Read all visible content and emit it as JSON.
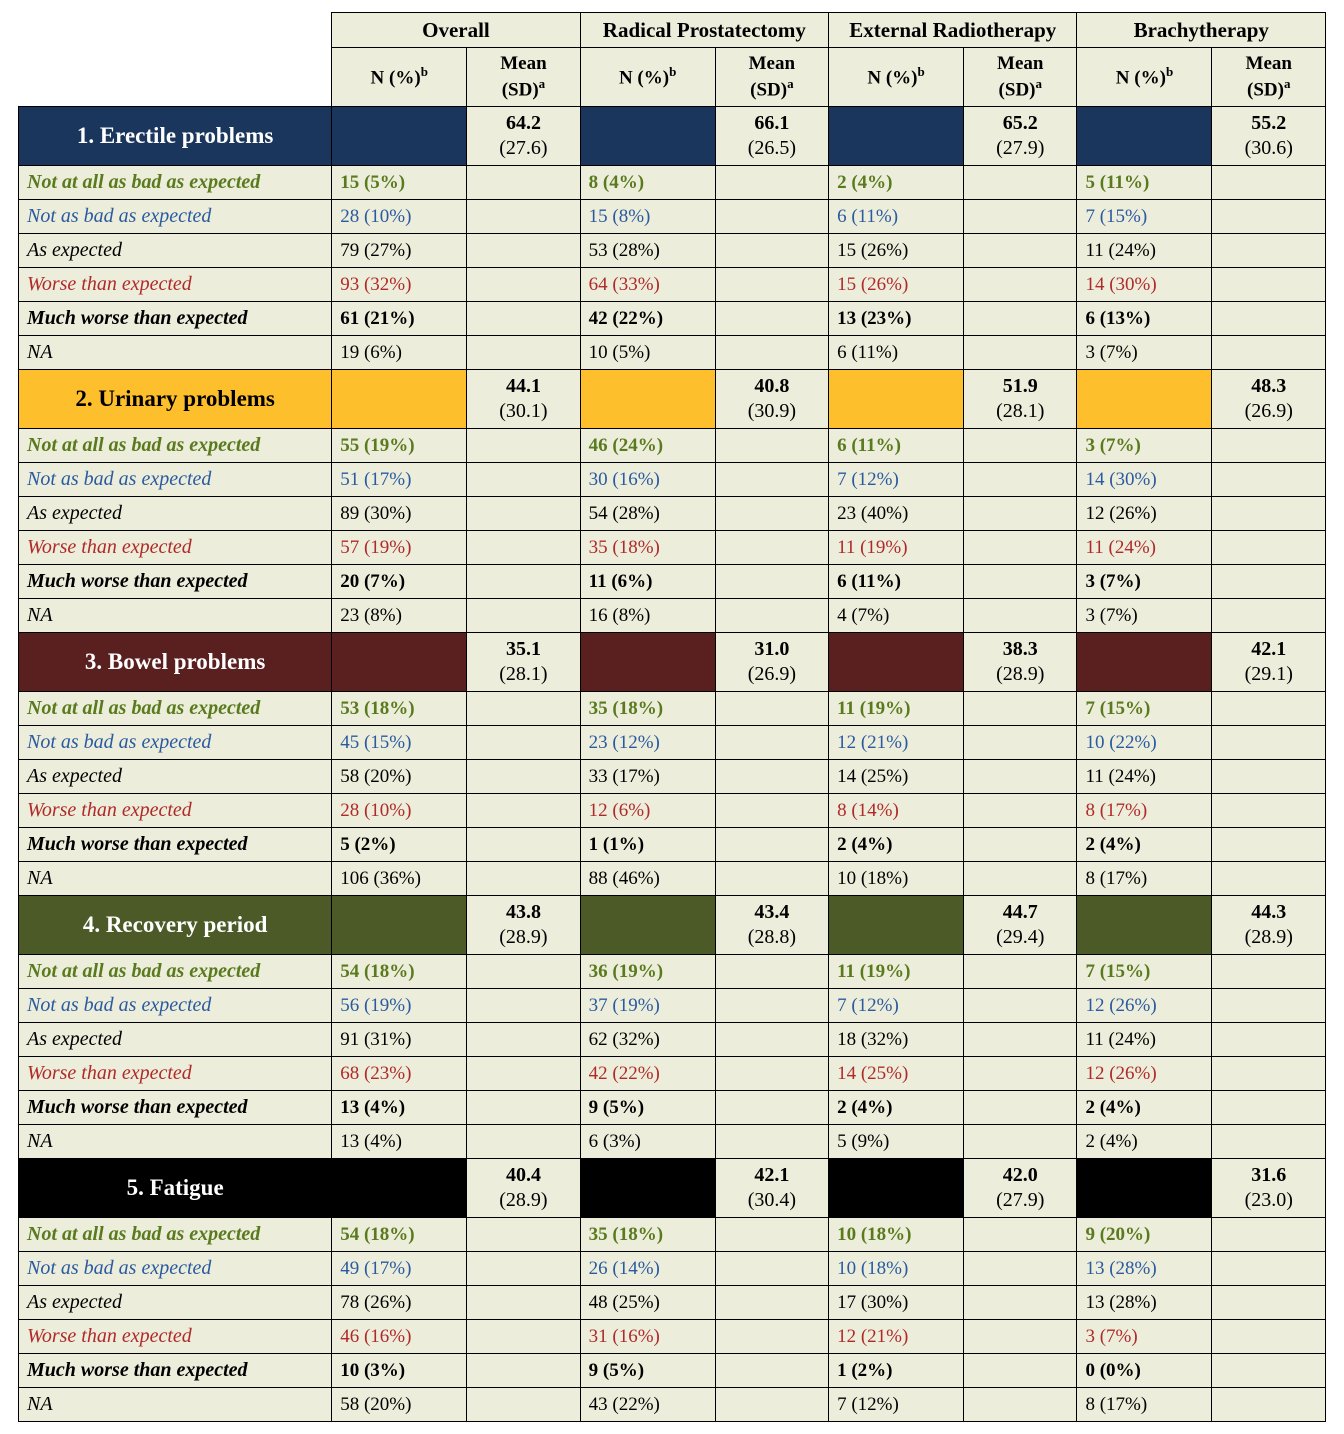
{
  "colors": {
    "header_bg": "#ecedda",
    "cell_bg": "#ecedda",
    "section_bg": {
      "erectile": "#1b365d",
      "urinary": "#febf2c",
      "bowel": "#5a1f1f",
      "recovery": "#4b5a27",
      "fatigue": "#000000"
    },
    "category_text": {
      "not_at_all": "#5a7a1e",
      "not_as_bad": "#2a5aa0",
      "as_expected": "#000000",
      "worse": "#b02a2a",
      "much_worse": "#000000",
      "na": "#000000"
    }
  },
  "groups": [
    "Overall",
    "Radical Prostatectomy",
    "External Radiotherapy",
    "Brachytherapy"
  ],
  "sub_n": "N (%)",
  "sub_n_sup": "b",
  "sub_mean": "Mean (SD)",
  "sub_mean_sup": "a",
  "categories": {
    "not_at_all": {
      "label": "Not at all as bad as expected",
      "color": "c-green",
      "bold": true
    },
    "not_as_bad": {
      "label": "Not as bad as expected",
      "color": "c-blue",
      "bold": false
    },
    "as_expected": {
      "label": "As expected",
      "color": "c-black",
      "bold": false
    },
    "worse": {
      "label": "Worse than expected",
      "color": "c-red",
      "bold": false
    },
    "much_worse": {
      "label": "Much worse than expected",
      "color": "c-black",
      "bold": true
    },
    "na": {
      "label": "NA",
      "color": "c-black",
      "bold": false
    }
  },
  "sections": [
    {
      "key": "erectile",
      "title": "1. Erectile problems",
      "bg_class": "bg-navy",
      "means": [
        {
          "m": "64.2",
          "s": "(27.6)"
        },
        {
          "m": "66.1",
          "s": "(26.5)"
        },
        {
          "m": "65.2",
          "s": "(27.9)"
        },
        {
          "m": "55.2",
          "s": "(30.6)"
        }
      ],
      "rows": {
        "not_at_all": [
          "15 (5%)",
          "8 (4%)",
          "2 (4%)",
          "5 (11%)"
        ],
        "not_as_bad": [
          "28 (10%)",
          "15 (8%)",
          "6 (11%)",
          "7 (15%)"
        ],
        "as_expected": [
          "79 (27%)",
          "53 (28%)",
          "15 (26%)",
          "11 (24%)"
        ],
        "worse": [
          "93 (32%)",
          "64 (33%)",
          "15 (26%)",
          "14 (30%)"
        ],
        "much_worse": [
          "61 (21%)",
          "42 (22%)",
          "13 (23%)",
          "6 (13%)"
        ],
        "na": [
          "19 (6%)",
          "10 (5%)",
          "6 (11%)",
          "3 (7%)"
        ]
      }
    },
    {
      "key": "urinary",
      "title": "2. Urinary problems",
      "bg_class": "bg-gold",
      "means": [
        {
          "m": "44.1",
          "s": "(30.1)"
        },
        {
          "m": "40.8",
          "s": "(30.9)"
        },
        {
          "m": "51.9",
          "s": "(28.1)"
        },
        {
          "m": "48.3",
          "s": "(26.9)"
        }
      ],
      "rows": {
        "not_at_all": [
          "55 (19%)",
          "46 (24%)",
          "6 (11%)",
          "3 (7%)"
        ],
        "not_as_bad": [
          "51 (17%)",
          "30 (16%)",
          "7 (12%)",
          "14 (30%)"
        ],
        "as_expected": [
          "89 (30%)",
          "54 (28%)",
          "23 (40%)",
          "12 (26%)"
        ],
        "worse": [
          "57 (19%)",
          "35 (18%)",
          "11 (19%)",
          "11 (24%)"
        ],
        "much_worse": [
          "20 (7%)",
          "11 (6%)",
          "6 (11%)",
          "3 (7%)"
        ],
        "na": [
          "23 (8%)",
          "16 (8%)",
          "4 (7%)",
          "3 (7%)"
        ]
      }
    },
    {
      "key": "bowel",
      "title": "3. Bowel problems",
      "bg_class": "bg-maroon",
      "means": [
        {
          "m": "35.1",
          "s": "(28.1)"
        },
        {
          "m": "31.0",
          "s": "(26.9)"
        },
        {
          "m": "38.3",
          "s": "(28.9)"
        },
        {
          "m": "42.1",
          "s": "(29.1)"
        }
      ],
      "rows": {
        "not_at_all": [
          "53 (18%)",
          "35 (18%)",
          "11 (19%)",
          "7 (15%)"
        ],
        "not_as_bad": [
          "45 (15%)",
          "23 (12%)",
          "12 (21%)",
          "10 (22%)"
        ],
        "as_expected": [
          "58 (20%)",
          "33 (17%)",
          "14 (25%)",
          "11 (24%)"
        ],
        "worse": [
          "28 (10%)",
          "12 (6%)",
          "8 (14%)",
          "8 (17%)"
        ],
        "much_worse": [
          "5 (2%)",
          "1 (1%)",
          "2 (4%)",
          "2 (4%)"
        ],
        "na": [
          "106 (36%)",
          "88 (46%)",
          "10 (18%)",
          "8 (17%)"
        ]
      }
    },
    {
      "key": "recovery",
      "title": "4. Recovery period",
      "bg_class": "bg-olive",
      "means": [
        {
          "m": "43.8",
          "s": "(28.9)"
        },
        {
          "m": "43.4",
          "s": "(28.8)"
        },
        {
          "m": "44.7",
          "s": "(29.4)"
        },
        {
          "m": "44.3",
          "s": "(28.9)"
        }
      ],
      "rows": {
        "not_at_all": [
          "54 (18%)",
          "36 (19%)",
          "11 (19%)",
          "7 (15%)"
        ],
        "not_as_bad": [
          "56 (19%)",
          "37 (19%)",
          "7 (12%)",
          "12 (26%)"
        ],
        "as_expected": [
          "91 (31%)",
          "62 (32%)",
          "18 (32%)",
          "11 (24%)"
        ],
        "worse": [
          "68 (23%)",
          "42 (22%)",
          "14 (25%)",
          "12 (26%)"
        ],
        "much_worse": [
          "13 (4%)",
          "9 (5%)",
          "2 (4%)",
          "2 (4%)"
        ],
        "na": [
          "13 (4%)",
          "6 (3%)",
          "5 (9%)",
          "2 (4%)"
        ]
      }
    },
    {
      "key": "fatigue",
      "title": "5. Fatigue",
      "bg_class": "bg-black",
      "means": [
        {
          "m": "40.4",
          "s": "(28.9)"
        },
        {
          "m": "42.1",
          "s": "(30.4)"
        },
        {
          "m": "42.0",
          "s": "(27.9)"
        },
        {
          "m": "31.6",
          "s": "(23.0)"
        }
      ],
      "rows": {
        "not_at_all": [
          "54 (18%)",
          "35 (18%)",
          "10 (18%)",
          "9 (20%)"
        ],
        "not_as_bad": [
          "49 (17%)",
          "26 (14%)",
          "10 (18%)",
          "13 (28%)"
        ],
        "as_expected": [
          "78 (26%)",
          "48 (25%)",
          "17 (30%)",
          "13 (28%)"
        ],
        "worse": [
          "46 (16%)",
          "31 (16%)",
          "12 (21%)",
          "3 (7%)"
        ],
        "much_worse": [
          "10 (3%)",
          "9 (5%)",
          "1 (2%)",
          "0 (0%)"
        ],
        "na": [
          "58 (20%)",
          "43 (22%)",
          "7 (12%)",
          "8 (17%)"
        ]
      }
    }
  ]
}
